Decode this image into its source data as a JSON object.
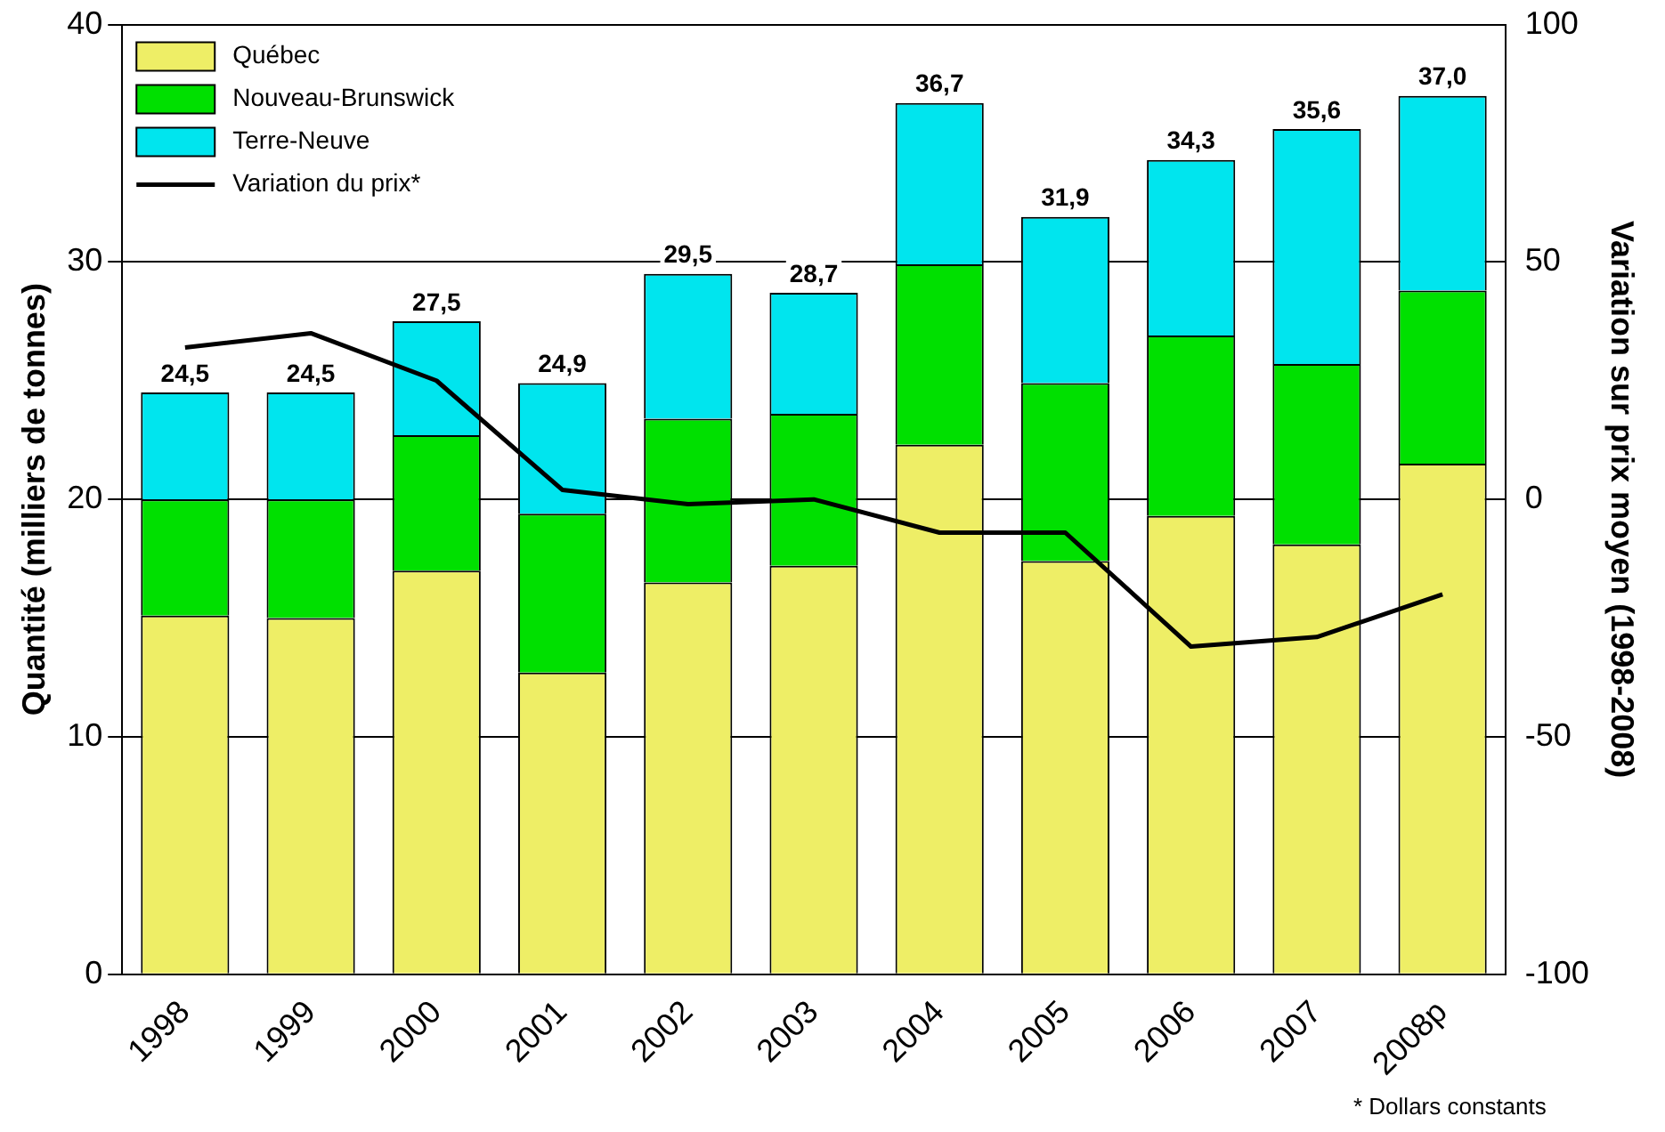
{
  "chart_data": {
    "type": "bar",
    "stacked": true,
    "ylabel": "Quantité (milliers de tonnes)",
    "y2label": "Variation sur prix moyen (1998-2008)",
    "categories": [
      "1998",
      "1999",
      "2000",
      "2001",
      "2002",
      "2003",
      "2004",
      "2005",
      "2006",
      "2007",
      "2008p"
    ],
    "series": [
      {
        "name": "Québec",
        "color": "#eeee66",
        "values": [
          15.1,
          15.0,
          17.0,
          12.7,
          16.5,
          17.2,
          22.3,
          17.4,
          19.3,
          18.1,
          21.5
        ]
      },
      {
        "name": "Nouveau-Brunswick",
        "color": "#00e000",
        "values": [
          4.9,
          5.0,
          5.7,
          6.7,
          6.9,
          6.4,
          7.6,
          7.5,
          7.6,
          7.6,
          7.3
        ]
      },
      {
        "name": "Terre-Neuve",
        "color": "#00e5ee",
        "values": [
          4.5,
          4.5,
          4.8,
          5.5,
          6.1,
          5.1,
          6.8,
          7.0,
          7.4,
          9.9,
          8.2
        ]
      },
      {
        "name": "Variation du prix*",
        "type": "line",
        "axis": "y2",
        "color": "#000000",
        "marker": "none",
        "values": [
          32,
          35,
          25,
          2,
          -1,
          0,
          -7,
          -7,
          -31,
          -29,
          -20
        ]
      }
    ],
    "totals": [
      "24,5",
      "24,5",
      "27,5",
      "24,9",
      "29,5",
      "28,7",
      "36,7",
      "31,9",
      "34,3",
      "35,6",
      "37,0"
    ],
    "ylim": [
      0,
      40
    ],
    "yticks": [
      0,
      10,
      20,
      30,
      40
    ],
    "y2lim": [
      -100,
      100
    ],
    "y2ticks": [
      -100,
      -50,
      0,
      50,
      100
    ],
    "grid": "y",
    "legend": "top left",
    "annotations": [
      "* Dollars constants"
    ]
  }
}
